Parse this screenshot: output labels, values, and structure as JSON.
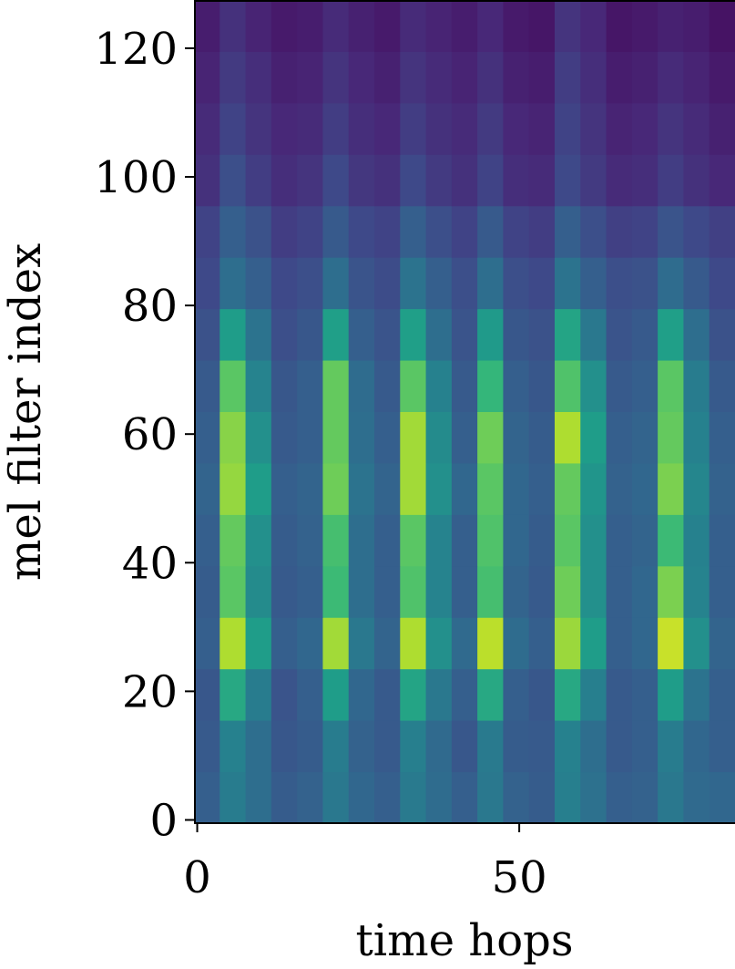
{
  "chart_data": {
    "type": "heatmap",
    "xlabel": "time hops",
    "ylabel": "mel filter index",
    "colormap": "viridis",
    "vlim": [
      0,
      1
    ],
    "xlim": [
      -0.5,
      83.5
    ],
    "ylim": [
      -0.5,
      127.5
    ],
    "xticks": [
      0,
      50
    ],
    "yticks": [
      0,
      20,
      40,
      60,
      80,
      100,
      120
    ],
    "x": [
      1.5,
      5.5,
      9.5,
      13.5,
      17.5,
      21.5,
      25.5,
      29.5,
      33.5,
      37.5,
      41.5,
      45.5,
      49.5,
      53.5,
      57.5,
      61.5,
      65.5,
      69.5,
      73.5,
      77.5,
      81.5
    ],
    "y": [
      3.5,
      11.5,
      19.5,
      27.5,
      35.5,
      43.5,
      51.5,
      59.5,
      67.5,
      75.5,
      83.5,
      91.5,
      99.5,
      107.5,
      115.5,
      123.5
    ],
    "z": [
      [
        0.3,
        0.42,
        0.36,
        0.29,
        0.31,
        0.4,
        0.33,
        0.3,
        0.41,
        0.35,
        0.3,
        0.4,
        0.31,
        0.29,
        0.43,
        0.37,
        0.3,
        0.31,
        0.4,
        0.34,
        0.33
      ],
      [
        0.28,
        0.44,
        0.36,
        0.27,
        0.29,
        0.42,
        0.31,
        0.28,
        0.43,
        0.34,
        0.27,
        0.41,
        0.29,
        0.28,
        0.44,
        0.36,
        0.28,
        0.3,
        0.42,
        0.33,
        0.3
      ],
      [
        0.27,
        0.6,
        0.42,
        0.26,
        0.3,
        0.55,
        0.33,
        0.28,
        0.58,
        0.4,
        0.3,
        0.6,
        0.3,
        0.27,
        0.6,
        0.43,
        0.28,
        0.3,
        0.55,
        0.38,
        0.3
      ],
      [
        0.3,
        0.88,
        0.55,
        0.3,
        0.33,
        0.86,
        0.4,
        0.32,
        0.88,
        0.5,
        0.34,
        0.9,
        0.35,
        0.3,
        0.85,
        0.55,
        0.3,
        0.33,
        0.92,
        0.5,
        0.32
      ],
      [
        0.29,
        0.74,
        0.48,
        0.28,
        0.3,
        0.68,
        0.36,
        0.3,
        0.72,
        0.45,
        0.3,
        0.7,
        0.32,
        0.28,
        0.78,
        0.5,
        0.3,
        0.33,
        0.8,
        0.45,
        0.3
      ],
      [
        0.3,
        0.76,
        0.5,
        0.29,
        0.31,
        0.7,
        0.36,
        0.3,
        0.74,
        0.45,
        0.3,
        0.72,
        0.33,
        0.29,
        0.74,
        0.5,
        0.3,
        0.32,
        0.68,
        0.44,
        0.3
      ],
      [
        0.32,
        0.84,
        0.55,
        0.3,
        0.32,
        0.78,
        0.38,
        0.32,
        0.86,
        0.5,
        0.33,
        0.74,
        0.33,
        0.3,
        0.76,
        0.52,
        0.31,
        0.33,
        0.8,
        0.46,
        0.31
      ],
      [
        0.3,
        0.82,
        0.5,
        0.28,
        0.3,
        0.76,
        0.36,
        0.3,
        0.86,
        0.48,
        0.3,
        0.78,
        0.32,
        0.29,
        0.88,
        0.55,
        0.3,
        0.32,
        0.76,
        0.44,
        0.3
      ],
      [
        0.28,
        0.74,
        0.45,
        0.27,
        0.3,
        0.76,
        0.35,
        0.28,
        0.74,
        0.44,
        0.28,
        0.66,
        0.3,
        0.27,
        0.72,
        0.5,
        0.28,
        0.3,
        0.74,
        0.42,
        0.28
      ],
      [
        0.25,
        0.55,
        0.38,
        0.24,
        0.27,
        0.56,
        0.3,
        0.26,
        0.56,
        0.36,
        0.26,
        0.54,
        0.27,
        0.25,
        0.58,
        0.4,
        0.26,
        0.28,
        0.56,
        0.36,
        0.25
      ],
      [
        0.22,
        0.36,
        0.3,
        0.22,
        0.24,
        0.36,
        0.26,
        0.23,
        0.38,
        0.3,
        0.24,
        0.36,
        0.24,
        0.22,
        0.38,
        0.3,
        0.24,
        0.25,
        0.35,
        0.28,
        0.22
      ],
      [
        0.2,
        0.3,
        0.25,
        0.18,
        0.2,
        0.28,
        0.22,
        0.2,
        0.3,
        0.24,
        0.2,
        0.28,
        0.2,
        0.18,
        0.3,
        0.24,
        0.19,
        0.2,
        0.26,
        0.22,
        0.19
      ],
      [
        0.14,
        0.24,
        0.18,
        0.13,
        0.15,
        0.22,
        0.16,
        0.14,
        0.22,
        0.17,
        0.14,
        0.2,
        0.13,
        0.12,
        0.22,
        0.17,
        0.12,
        0.13,
        0.18,
        0.14,
        0.11
      ],
      [
        0.12,
        0.2,
        0.15,
        0.11,
        0.12,
        0.18,
        0.13,
        0.11,
        0.18,
        0.14,
        0.12,
        0.17,
        0.11,
        0.1,
        0.2,
        0.15,
        0.1,
        0.11,
        0.15,
        0.12,
        0.09
      ],
      [
        0.1,
        0.17,
        0.13,
        0.09,
        0.1,
        0.15,
        0.11,
        0.09,
        0.15,
        0.12,
        0.1,
        0.14,
        0.09,
        0.08,
        0.18,
        0.13,
        0.08,
        0.09,
        0.12,
        0.1,
        0.07
      ],
      [
        0.08,
        0.14,
        0.1,
        0.07,
        0.08,
        0.12,
        0.09,
        0.07,
        0.12,
        0.1,
        0.08,
        0.11,
        0.07,
        0.06,
        0.15,
        0.11,
        0.06,
        0.07,
        0.09,
        0.08,
        0.05
      ]
    ]
  }
}
